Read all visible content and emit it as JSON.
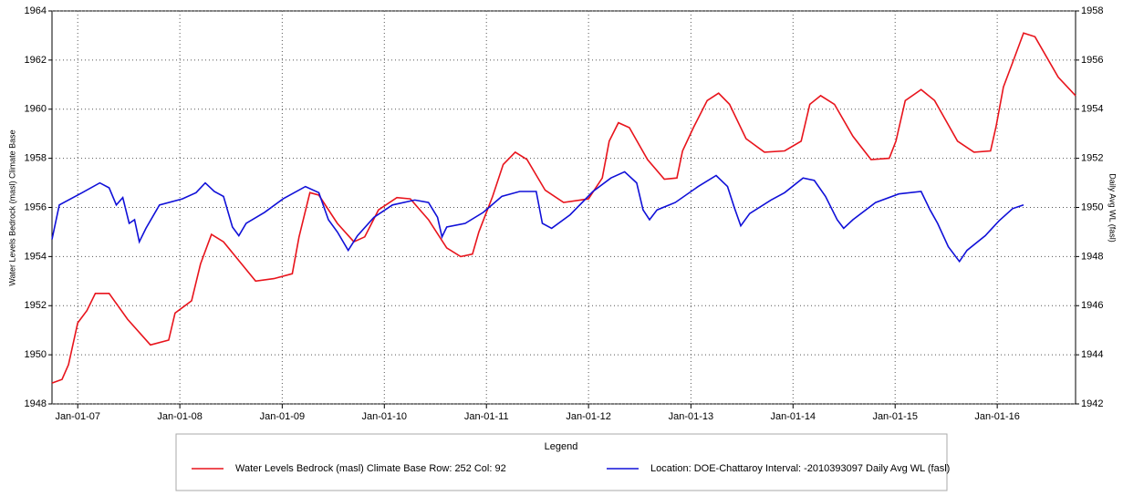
{
  "chart_data": {
    "type": "line",
    "y_label": "Water Levels Bedrock (masl) Climate Base",
    "y2_label": "Daily Avg WL (fasl)",
    "legend_title": "Legend",
    "xlim": [
      "2006-10-01",
      "2016-10-07"
    ],
    "xticks": [
      {
        "value": "2007-01-01",
        "label": "Jan-01-07"
      },
      {
        "value": "2008-01-01",
        "label": "Jan-01-08"
      },
      {
        "value": "2009-01-01",
        "label": "Jan-01-09"
      },
      {
        "value": "2010-01-01",
        "label": "Jan-01-10"
      },
      {
        "value": "2011-01-01",
        "label": "Jan-01-11"
      },
      {
        "value": "2012-01-01",
        "label": "Jan-01-12"
      },
      {
        "value": "2013-01-01",
        "label": "Jan-01-13"
      },
      {
        "value": "2014-01-01",
        "label": "Jan-01-14"
      },
      {
        "value": "2015-01-01",
        "label": "Jan-01-15"
      },
      {
        "value": "2016-01-01",
        "label": "Jan-01-16"
      }
    ],
    "ylim": [
      1948,
      1964
    ],
    "yticks": [
      1948,
      1950,
      1952,
      1954,
      1956,
      1958,
      1960,
      1962,
      1964
    ],
    "y2lim": [
      1942,
      1958
    ],
    "y2ticks": [
      1942,
      1944,
      1946,
      1948,
      1950,
      1952,
      1954,
      1956,
      1958
    ],
    "grid": true,
    "series": [
      {
        "name": "Water Levels Bedrock (masl) Climate Base Row: 252 Col: 92",
        "color": "#e8141c",
        "axis": "y",
        "x": [
          "2006-10-01",
          "2006-11-06",
          "2006-11-29",
          "2007-01-01",
          "2007-02-03",
          "2007-03-05",
          "2007-04-23",
          "2007-06-28",
          "2007-09-18",
          "2007-11-22",
          "2007-12-15",
          "2008-02-12",
          "2008-03-15",
          "2008-04-23",
          "2008-06-05",
          "2008-09-28",
          "2008-12-02",
          "2009-02-06",
          "2009-03-02",
          "2009-04-10",
          "2009-05-12",
          "2009-07-17",
          "2009-09-14",
          "2009-10-23",
          "2009-12-11",
          "2010-02-15",
          "2010-04-04",
          "2010-06-08",
          "2010-08-12",
          "2010-10-01",
          "2010-11-12",
          "2010-12-05",
          "2011-01-23",
          "2011-03-02",
          "2011-04-14",
          "2011-05-26",
          "2011-07-30",
          "2011-10-04",
          "2012-01-01",
          "2012-02-19",
          "2012-03-15",
          "2012-04-17",
          "2012-05-26",
          "2012-07-30",
          "2012-09-28",
          "2012-11-12",
          "2012-12-02",
          "2013-01-10",
          "2013-02-28",
          "2013-04-10",
          "2013-05-19",
          "2013-07-17",
          "2013-09-21",
          "2013-12-02",
          "2014-01-30",
          "2014-03-02",
          "2014-04-10",
          "2014-05-29",
          "2014-08-03",
          "2014-10-07",
          "2014-12-11",
          "2015-01-04",
          "2015-02-06",
          "2015-04-04",
          "2015-05-22",
          "2015-08-12",
          "2015-10-10",
          "2015-12-08",
          "2015-12-28",
          "2016-01-23",
          "2016-02-25",
          "2016-04-04",
          "2016-05-15",
          "2016-08-06",
          "2016-10-07"
        ],
        "values": [
          1948.85,
          1949.0,
          1949.6,
          1951.3,
          1951.8,
          1952.5,
          1952.5,
          1951.45,
          1950.4,
          1950.6,
          1951.7,
          1952.2,
          1953.7,
          1954.9,
          1954.6,
          1953.0,
          1953.1,
          1953.3,
          1954.8,
          1956.6,
          1956.5,
          1955.35,
          1954.6,
          1954.8,
          1955.9,
          1956.4,
          1956.35,
          1955.5,
          1954.35,
          1954.0,
          1954.1,
          1955.0,
          1956.45,
          1957.75,
          1958.25,
          1957.95,
          1956.7,
          1956.2,
          1956.35,
          1957.2,
          1958.7,
          1959.45,
          1959.25,
          1957.95,
          1957.15,
          1957.2,
          1958.3,
          1959.25,
          1960.35,
          1960.65,
          1960.2,
          1958.8,
          1958.25,
          1958.3,
          1958.7,
          1960.2,
          1960.55,
          1960.2,
          1958.9,
          1957.95,
          1958.0,
          1958.7,
          1960.35,
          1960.8,
          1960.35,
          1958.7,
          1958.25,
          1958.3,
          1959.3,
          1960.9,
          1961.9,
          1963.1,
          1962.95,
          1961.3,
          1960.55
        ]
      },
      {
        "name": "Location: DOE-Chattaroy Interval: -2010393097 Daily Avg WL (fasl)",
        "color": "#1010d8",
        "axis": "y2",
        "x": [
          "2006-10-01",
          "2006-10-27",
          "2007-01-17",
          "2007-03-21",
          "2007-04-23",
          "2007-05-19",
          "2007-06-11",
          "2007-07-04",
          "2007-07-23",
          "2007-08-09",
          "2007-09-02",
          "2007-10-20",
          "2008-01-10",
          "2008-02-28",
          "2008-04-01",
          "2008-05-03",
          "2008-06-05",
          "2008-07-07",
          "2008-07-30",
          "2008-08-25",
          "2008-10-30",
          "2009-01-04",
          "2009-03-25",
          "2009-05-12",
          "2009-06-15",
          "2009-07-17",
          "2009-08-25",
          "2009-09-27",
          "2009-11-25",
          "2010-01-30",
          "2010-04-20",
          "2010-06-08",
          "2010-07-10",
          "2010-07-26",
          "2010-08-12",
          "2010-10-17",
          "2010-12-21",
          "2011-02-25",
          "2011-04-30",
          "2011-06-28",
          "2011-07-20",
          "2011-08-22",
          "2011-10-27",
          "2012-01-17",
          "2012-03-21",
          "2012-05-09",
          "2012-06-21",
          "2012-07-14",
          "2012-08-06",
          "2012-09-02",
          "2012-11-06",
          "2013-01-27",
          "2013-04-01",
          "2013-05-12",
          "2013-06-05",
          "2013-06-28",
          "2013-07-30",
          "2013-10-14",
          "2013-12-02",
          "2014-02-06",
          "2014-03-18",
          "2014-04-27",
          "2014-06-08",
          "2014-07-01",
          "2014-08-03",
          "2014-10-23",
          "2015-01-14",
          "2015-04-04",
          "2015-05-06",
          "2015-06-02",
          "2015-07-10",
          "2015-08-19",
          "2015-09-15",
          "2015-11-19",
          "2016-01-07",
          "2016-02-25",
          "2016-04-04"
        ],
        "values": [
          1948.7,
          1950.1,
          1950.6,
          1951.0,
          1950.8,
          1950.1,
          1950.4,
          1949.35,
          1949.5,
          1948.6,
          1949.15,
          1950.1,
          1950.35,
          1950.6,
          1951.0,
          1950.65,
          1950.45,
          1949.2,
          1948.85,
          1949.35,
          1949.8,
          1950.35,
          1950.85,
          1950.6,
          1949.5,
          1949.0,
          1948.25,
          1948.85,
          1949.6,
          1950.1,
          1950.3,
          1950.2,
          1949.6,
          1948.8,
          1949.2,
          1949.35,
          1949.8,
          1950.45,
          1950.65,
          1950.65,
          1949.35,
          1949.15,
          1949.7,
          1950.65,
          1951.2,
          1951.45,
          1951.0,
          1949.9,
          1949.5,
          1949.9,
          1950.2,
          1950.85,
          1951.3,
          1950.85,
          1950.0,
          1949.25,
          1949.75,
          1950.3,
          1950.6,
          1951.2,
          1951.1,
          1950.45,
          1949.5,
          1949.15,
          1949.5,
          1950.2,
          1950.55,
          1950.65,
          1949.9,
          1949.35,
          1948.4,
          1947.8,
          1948.25,
          1948.85,
          1949.45,
          1949.95,
          1950.1
        ]
      }
    ]
  }
}
